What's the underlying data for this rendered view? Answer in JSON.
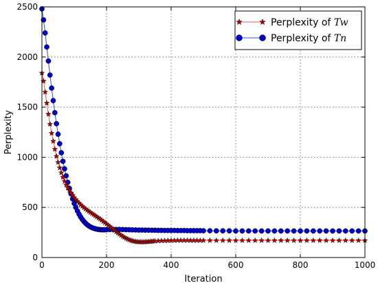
{
  "chart_data": {
    "type": "line",
    "title": "",
    "xlabel": "Iteration",
    "ylabel": "Perplexity",
    "xlim": [
      0,
      1000
    ],
    "ylim": [
      0,
      2500
    ],
    "xticks": [
      0,
      200,
      400,
      600,
      800,
      1000
    ],
    "yticks": [
      0,
      500,
      1000,
      1500,
      2000,
      2500
    ],
    "grid": true,
    "legend_position": "top-right",
    "series": [
      {
        "name_prefix": "Perplexity of ",
        "name_math": "Tw",
        "color": "#b30000",
        "line_color": "#e06060",
        "marker": "star",
        "x": [
          0,
          5,
          10,
          15,
          20,
          25,
          30,
          35,
          40,
          45,
          50,
          55,
          60,
          65,
          70,
          75,
          80,
          85,
          90,
          95,
          100,
          105,
          110,
          115,
          120,
          125,
          130,
          135,
          140,
          145,
          150,
          155,
          160,
          165,
          170,
          175,
          180,
          185,
          190,
          195,
          200,
          205,
          210,
          215,
          220,
          225,
          230,
          235,
          240,
          245,
          250,
          255,
          260,
          265,
          270,
          275,
          280,
          285,
          290,
          295,
          300,
          305,
          310,
          315,
          320,
          325,
          330,
          335,
          340,
          345,
          350,
          360,
          370,
          380,
          390,
          400,
          410,
          420,
          430,
          440,
          450,
          460,
          470,
          480,
          490,
          500,
          520,
          540,
          560,
          580,
          600,
          620,
          640,
          660,
          680,
          700,
          720,
          740,
          760,
          780,
          800,
          820,
          840,
          860,
          880,
          900,
          920,
          940,
          960,
          980,
          1000
        ],
        "values": [
          1840,
          1760,
          1650,
          1540,
          1430,
          1330,
          1240,
          1160,
          1080,
          1010,
          950,
          895,
          845,
          800,
          760,
          725,
          695,
          668,
          643,
          620,
          598,
          578,
          560,
          543,
          527,
          512,
          498,
          485,
          473,
          461,
          450,
          439,
          428,
          417,
          406,
          395,
          384,
          372,
          360,
          348,
          335,
          322,
          309,
          296,
          283,
          270,
          257,
          245,
          233,
          222,
          211,
          201,
          192,
          184,
          177,
          171,
          166,
          162,
          159,
          157,
          156,
          155,
          155,
          155,
          156,
          157,
          158,
          160,
          161,
          163,
          164,
          166,
          167,
          168,
          169,
          170,
          170,
          171,
          171,
          171,
          171,
          170,
          170,
          170,
          170,
          170,
          170,
          170,
          170,
          170,
          170,
          170,
          170,
          170,
          170,
          170,
          170,
          170,
          170,
          170,
          170,
          170,
          170,
          170,
          170,
          170,
          170,
          170,
          170,
          170,
          170
        ]
      },
      {
        "name_prefix": "Perplexity of ",
        "name_math": "Tn",
        "color": "#0000cc",
        "line_color": "#2f4fd0",
        "marker": "circle",
        "x": [
          0,
          5,
          10,
          15,
          20,
          25,
          30,
          35,
          40,
          45,
          50,
          55,
          60,
          65,
          70,
          75,
          80,
          85,
          90,
          95,
          100,
          105,
          110,
          115,
          120,
          125,
          130,
          135,
          140,
          145,
          150,
          155,
          160,
          165,
          170,
          175,
          180,
          185,
          190,
          195,
          200,
          210,
          220,
          230,
          240,
          250,
          260,
          270,
          280,
          290,
          300,
          310,
          320,
          330,
          340,
          350,
          360,
          370,
          380,
          390,
          400,
          410,
          420,
          430,
          440,
          450,
          460,
          470,
          480,
          490,
          500,
          520,
          540,
          560,
          580,
          600,
          620,
          640,
          660,
          680,
          700,
          720,
          740,
          760,
          780,
          800,
          820,
          840,
          860,
          880,
          900,
          920,
          940,
          960,
          980,
          1000
        ],
        "values": [
          2480,
          2370,
          2240,
          2100,
          1960,
          1820,
          1690,
          1565,
          1445,
          1335,
          1230,
          1135,
          1045,
          960,
          885,
          815,
          750,
          690,
          635,
          585,
          540,
          500,
          464,
          432,
          404,
          380,
          360,
          343,
          328,
          316,
          306,
          298,
          292,
          287,
          283,
          280,
          278,
          277,
          277,
          277,
          278,
          279,
          280,
          280,
          280,
          279,
          278,
          277,
          276,
          275,
          274,
          274,
          273,
          273,
          272,
          272,
          271,
          271,
          270,
          270,
          270,
          270,
          269,
          269,
          269,
          268,
          268,
          268,
          268,
          268,
          267,
          267,
          266,
          266,
          266,
          265,
          265,
          265,
          265,
          265,
          265,
          265,
          265,
          265,
          265,
          265,
          265,
          265,
          265,
          265,
          265,
          265,
          265,
          265,
          265,
          265
        ]
      }
    ]
  }
}
